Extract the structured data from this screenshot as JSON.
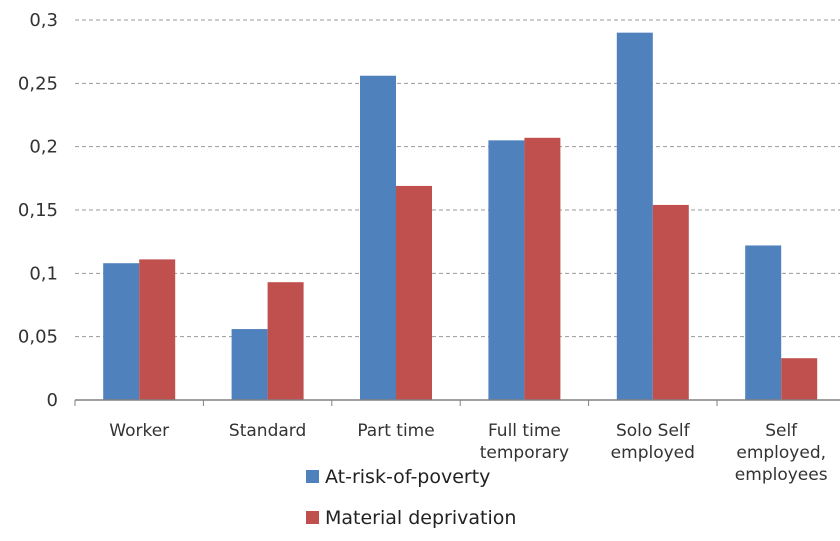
{
  "chart_data": {
    "type": "bar",
    "categories": [
      [
        "Worker"
      ],
      [
        "Standard"
      ],
      [
        "Part time"
      ],
      [
        "Full time",
        "temporary"
      ],
      [
        "Solo Self",
        "employed"
      ],
      [
        "Self",
        "employed,",
        "employees"
      ]
    ],
    "series": [
      {
        "name": "At-risk-of-poverty",
        "color": "#4F81BD",
        "values": [
          0.108,
          0.056,
          0.256,
          0.205,
          0.29,
          0.122
        ]
      },
      {
        "name": "Material deprivation",
        "color": "#C0504D",
        "values": [
          0.111,
          0.093,
          0.169,
          0.207,
          0.154,
          0.033
        ]
      }
    ],
    "ylim": [
      0,
      0.3
    ],
    "yticks": [
      {
        "value": 0,
        "label": "0"
      },
      {
        "value": 0.05,
        "label": "0,05"
      },
      {
        "value": 0.1,
        "label": "0,1"
      },
      {
        "value": 0.15,
        "label": "0,15"
      },
      {
        "value": 0.2,
        "label": "0,2"
      },
      {
        "value": 0.25,
        "label": "0,25"
      },
      {
        "value": 0.3,
        "label": "0,3"
      }
    ],
    "grid": true,
    "legend_position": "bottom"
  }
}
